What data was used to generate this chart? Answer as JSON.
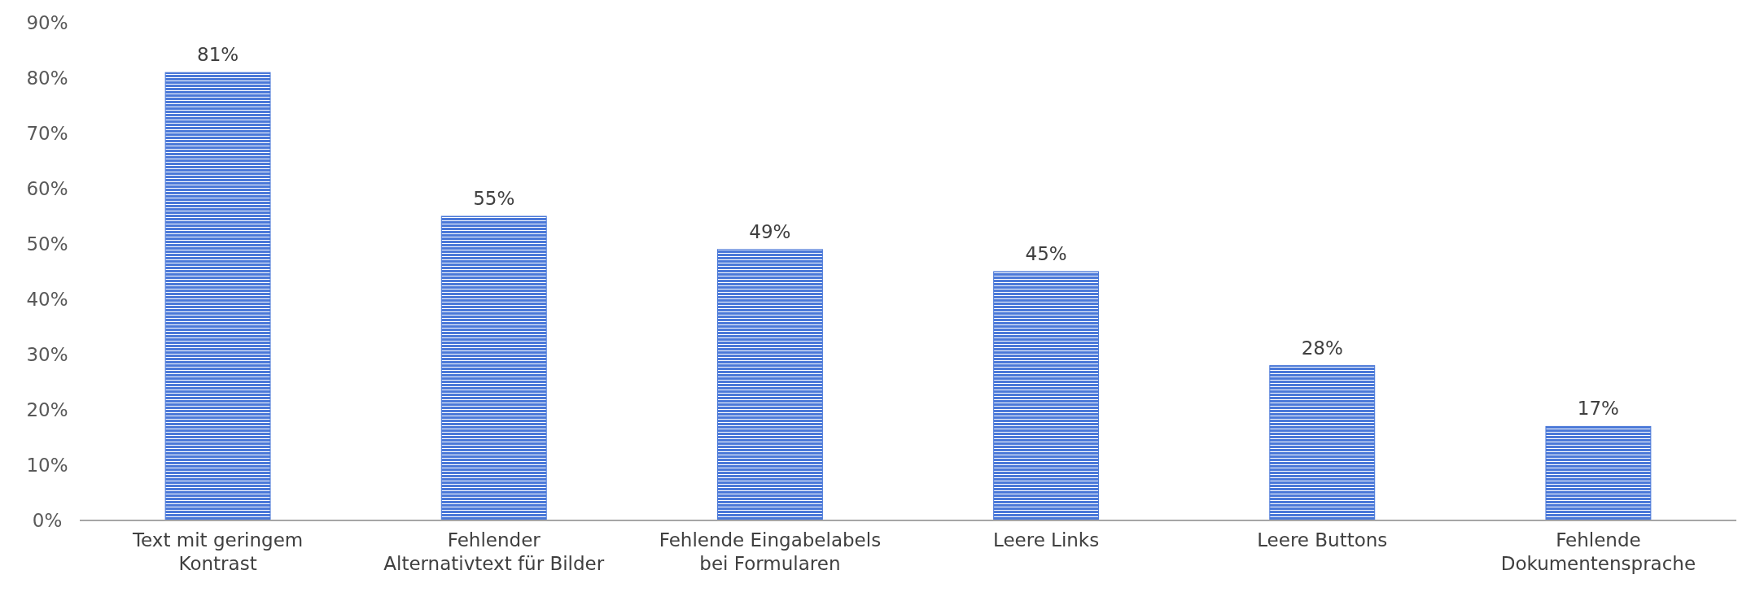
{
  "chart_data": {
    "type": "bar",
    "categories": [
      "Text mit geringem\nKontrast",
      "Fehlender\nAlternativtext für Bilder",
      "Fehlende Eingabelabels\nbei Formularen",
      "Leere Links",
      "Leere Buttons",
      "Fehlende\nDokumentensprache"
    ],
    "values": [
      81,
      55,
      49,
      45,
      28,
      17
    ],
    "value_labels": [
      "81%",
      "55%",
      "49%",
      "45%",
      "28%",
      "17%"
    ],
    "color": "#4a78d8",
    "ylim": [
      0,
      90
    ],
    "yticks": [
      {
        "value": 0,
        "label": "0%"
      },
      {
        "value": 10,
        "label": "10%"
      },
      {
        "value": 20,
        "label": "20%"
      },
      {
        "value": 30,
        "label": "30%"
      },
      {
        "value": 40,
        "label": "40%"
      },
      {
        "value": 50,
        "label": "50%"
      },
      {
        "value": 60,
        "label": "60%"
      },
      {
        "value": 70,
        "label": "70%"
      },
      {
        "value": 80,
        "label": "80%"
      },
      {
        "value": 90,
        "label": "90%"
      }
    ],
    "grid": false
  }
}
